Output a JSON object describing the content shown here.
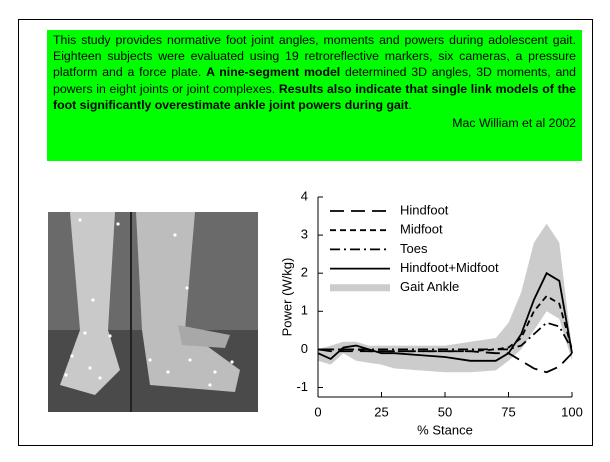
{
  "text_box": {
    "runs": [
      {
        "text": "This study provides normative foot joint angles, moments and powers during adolescent gait. Eighteen subjects were evaluated using 19 retroreflective markers, six cameras, a pressure platform and a force plate. ",
        "bold": false
      },
      {
        "text": "A nine-segment model",
        "bold": true
      },
      {
        "text": " determined 3D angles, 3D moments, and powers in eight joints or joint complexes. ",
        "bold": false
      },
      {
        "text": "Results also indicate that single link models of the foot significantly overestimate ankle joint powers during gait",
        "bold": true
      },
      {
        "text": ".",
        "bold": false
      }
    ],
    "citation": "Mac William et al 2002"
  },
  "chart_data": {
    "type": "line",
    "x_label": "% Stance",
    "y_label": "Power (W/kg)",
    "x": [
      0,
      5,
      10,
      15,
      20,
      25,
      30,
      40,
      50,
      60,
      70,
      75,
      80,
      85,
      90,
      95,
      100
    ],
    "xlim": [
      0,
      100
    ],
    "xticks": [
      0,
      25,
      50,
      75,
      100
    ],
    "ylim": [
      -1.25,
      4
    ],
    "yticks": [
      -1,
      0,
      1,
      2,
      3,
      4
    ],
    "series": [
      {
        "name": "Hindfoot",
        "color": "#000000",
        "dash": "14 7",
        "values": [
          0,
          -0.05,
          -0.05,
          -0.05,
          -0.05,
          -0.05,
          -0.05,
          -0.05,
          -0.05,
          -0.05,
          -0.1,
          -0.1,
          -0.3,
          -0.5,
          -0.6,
          -0.45,
          -0.1
        ]
      },
      {
        "name": "Midfoot",
        "color": "#000000",
        "dash": "6 4",
        "values": [
          0,
          0,
          0,
          0,
          -0.05,
          -0.05,
          -0.05,
          -0.05,
          -0.05,
          -0.05,
          0,
          0.05,
          0.3,
          1.0,
          1.4,
          1.2,
          0
        ]
      },
      {
        "name": "Toes",
        "color": "#000000",
        "dash": "10 4 2 4",
        "values": [
          0,
          0,
          0,
          0,
          0,
          0,
          0,
          0,
          0,
          0,
          0,
          0,
          0.1,
          0.4,
          0.7,
          0.6,
          0
        ]
      },
      {
        "name": "Hindfoot+Midfoot",
        "color": "#000000",
        "dash": "none",
        "values": [
          -0.1,
          -0.25,
          0.05,
          0.1,
          0,
          -0.1,
          -0.1,
          -0.15,
          -0.2,
          -0.3,
          -0.3,
          -0.1,
          0.4,
          1.3,
          2.0,
          1.8,
          -0.1
        ]
      },
      {
        "name": "Gait Ankle",
        "color": "#cccccc",
        "band": true,
        "low": [
          -0.3,
          -0.4,
          -0.1,
          -0.3,
          -0.35,
          -0.4,
          -0.5,
          -0.55,
          -0.6,
          -0.6,
          -0.55,
          -0.3,
          0,
          0.5,
          1.0,
          0.8,
          -0.3
        ],
        "high": [
          0,
          0.1,
          0.2,
          0.2,
          0.1,
          0.1,
          0.1,
          0.1,
          0.1,
          0.2,
          0.3,
          0.7,
          1.5,
          2.8,
          3.3,
          2.8,
          0
        ]
      }
    ]
  }
}
